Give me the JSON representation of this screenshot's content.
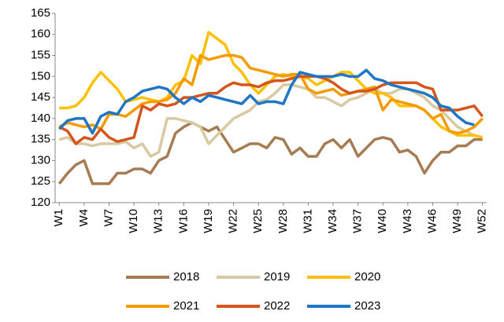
{
  "chart_data": {
    "type": "line",
    "categories": [
      "W1",
      null,
      null,
      "W4",
      null,
      null,
      "W7",
      null,
      null,
      "W10",
      null,
      null,
      "W13",
      null,
      null,
      "W16",
      null,
      null,
      "W19",
      null,
      null,
      "W22",
      null,
      null,
      "W25",
      null,
      null,
      "W28",
      null,
      null,
      "W31",
      null,
      null,
      "W34",
      null,
      null,
      "W37",
      null,
      null,
      "W40",
      null,
      null,
      "W43",
      null,
      null,
      "W46",
      null,
      null,
      "W49",
      null,
      null,
      "W52"
    ],
    "series": [
      {
        "name": "2018",
        "color": "#a67c52",
        "values": [
          124.5,
          127,
          129,
          130,
          124.5,
          124.5,
          124.5,
          127,
          127,
          128,
          128,
          127,
          130,
          131,
          136.5,
          138,
          139,
          138,
          137,
          138,
          135,
          132,
          133,
          134,
          134,
          133,
          135.5,
          135,
          131.5,
          133,
          131,
          131,
          134,
          135,
          133,
          135,
          131,
          133,
          135,
          135.5,
          135,
          132,
          132.5,
          131,
          127,
          130,
          132,
          132,
          133.5,
          133.5,
          135,
          135
        ]
      },
      {
        "name": "2019",
        "color": "#d9c9a3",
        "values": [
          135,
          135.5,
          134,
          134,
          133.5,
          134,
          134,
          134,
          134.5,
          133,
          134,
          131,
          132,
          140,
          140,
          139.5,
          139,
          138,
          134,
          136,
          138,
          140,
          141,
          142,
          144,
          144.5,
          146,
          148,
          148,
          147.5,
          147,
          145,
          145,
          144,
          143,
          144.5,
          145,
          146,
          147,
          146,
          146,
          147,
          147,
          146,
          145,
          143,
          142,
          140,
          138,
          137,
          136,
          135.5
        ]
      },
      {
        "name": "2020",
        "color": "#ffc000",
        "values": [
          142.5,
          142.5,
          143,
          145,
          148.5,
          151,
          149,
          147,
          144,
          144.5,
          145,
          144.5,
          144,
          145,
          148,
          149,
          155,
          153,
          160.5,
          159,
          157.5,
          153,
          151,
          148,
          146,
          148,
          150,
          150.5,
          150,
          150,
          149.5,
          148,
          149,
          150,
          151,
          151,
          149,
          147,
          146,
          146,
          145,
          143,
          143,
          143,
          142,
          140,
          138,
          137,
          136,
          136,
          136,
          135.5
        ]
      },
      {
        "name": "2021",
        "color": "#f59b00",
        "values": [
          138,
          139,
          138.5,
          138,
          138.5,
          137.5,
          141,
          141,
          140.5,
          142,
          143.5,
          144,
          144,
          144.5,
          146,
          149.5,
          148,
          155,
          154,
          154.5,
          155,
          155,
          154.5,
          152,
          151.5,
          151,
          150.5,
          150,
          150.5,
          150.5,
          147,
          146,
          146.5,
          147,
          145.5,
          146,
          146.5,
          147,
          147.5,
          142,
          144.5,
          144,
          143.5,
          143,
          142,
          140,
          141,
          137,
          136.5,
          137,
          138,
          140
        ]
      },
      {
        "name": "2022",
        "color": "#d4561c",
        "values": [
          138,
          137,
          134,
          135.5,
          135,
          137.5,
          135.5,
          134.5,
          135,
          135.5,
          143,
          142,
          143.5,
          143,
          143.5,
          145,
          145,
          145.5,
          146,
          146,
          147.5,
          148.5,
          148,
          148,
          147.5,
          148.5,
          149,
          149,
          149.5,
          150,
          150,
          150,
          149.5,
          148.5,
          147,
          146,
          146.5,
          146.5,
          147,
          148,
          148.5,
          148.5,
          148.5,
          148.5,
          147.5,
          147,
          142,
          142,
          142,
          142.5,
          143,
          140.5
        ]
      },
      {
        "name": "2023",
        "color": "#1f76c4",
        "values": [
          137.5,
          139.5,
          140,
          140,
          136.5,
          140.5,
          141.5,
          141,
          144,
          145,
          146.5,
          147,
          147.5,
          147,
          145,
          143.5,
          145,
          144,
          145.5,
          145,
          144.5,
          144,
          143.5,
          145.5,
          143.5,
          144,
          144,
          143.5,
          148,
          151,
          150.5,
          150,
          150,
          150,
          150.5,
          150,
          150,
          151.5,
          149.5,
          149,
          148,
          147.5,
          147,
          146.5,
          146,
          145,
          143,
          142.5,
          140.5,
          139,
          138.5,
          null
        ]
      }
    ],
    "ylim": [
      120,
      165
    ],
    "yticks": [
      120,
      125,
      130,
      135,
      140,
      145,
      150,
      155,
      160,
      165
    ],
    "grid": false
  }
}
